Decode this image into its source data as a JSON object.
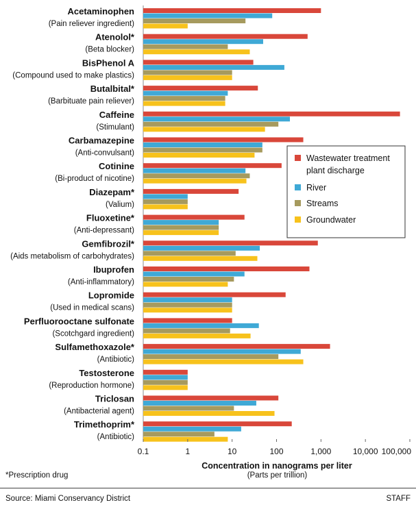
{
  "chart_data": {
    "type": "bar",
    "orientation": "horizontal",
    "xscale": "log",
    "xlim": [
      0.1,
      100000
    ],
    "xticks": [
      "0.1",
      "1",
      "10",
      "100",
      "1,000",
      "10,000",
      "100,000"
    ],
    "xlabel": "Concentration in nanograms per liter",
    "xlabel_sub": "(Parts per trillion)",
    "legend_position": "right-middle",
    "series": [
      {
        "name": "Wastewater treatment plant discharge",
        "color": "#d9473a"
      },
      {
        "name": "River",
        "color": "#3fa9d6"
      },
      {
        "name": "Streams",
        "color": "#a69a5e"
      },
      {
        "name": "Groundwater",
        "color": "#f7c21c"
      }
    ],
    "compounds": [
      {
        "name": "Acetaminophen",
        "desc": "(Pain reliever ingredient)",
        "values": [
          1000,
          80,
          20,
          1
        ]
      },
      {
        "name": "Atenolol*",
        "desc": "(Beta blocker)",
        "values": [
          500,
          50,
          8,
          25
        ]
      },
      {
        "name": "BisPhenol A",
        "desc": "(Compound used to make plastics)",
        "values": [
          30,
          150,
          10,
          10
        ]
      },
      {
        "name": "Butalbital*",
        "desc": "(Barbituate pain reliever)",
        "values": [
          38,
          8,
          7,
          7
        ]
      },
      {
        "name": "Caffeine",
        "desc": "(Stimulant)",
        "values": [
          60000,
          200,
          110,
          55
        ]
      },
      {
        "name": "Carbamazepine",
        "desc": "(Anti-convulsant)",
        "values": [
          400,
          48,
          48,
          32
        ]
      },
      {
        "name": "Cotinine",
        "desc": "(Bi-product of nicotine)",
        "values": [
          130,
          20,
          25,
          21
        ]
      },
      {
        "name": "Diazepam*",
        "desc": "(Valium)",
        "values": [
          14,
          1,
          1,
          1
        ]
      },
      {
        "name": "Fluoxetine*",
        "desc": "(Anti-depressant)",
        "values": [
          19,
          5,
          5,
          5
        ]
      },
      {
        "name": "Gemfibrozil*",
        "desc": "(Aids metabolism of carbohydrates)",
        "values": [
          850,
          42,
          12,
          37
        ]
      },
      {
        "name": "Ibuprofen",
        "desc": "(Anti-inflammatory)",
        "values": [
          550,
          19,
          11,
          8
        ]
      },
      {
        "name": "Lopromide",
        "desc": "(Used in medical scans)",
        "values": [
          160,
          10,
          10,
          10
        ]
      },
      {
        "name": "Perfluorooctane sulfonate",
        "desc": "(Scotchgard ingredient)",
        "values": [
          10,
          40,
          9,
          26
        ]
      },
      {
        "name": "Sulfamethoxazole*",
        "desc": "(Antibiotic)",
        "values": [
          1600,
          350,
          110,
          400
        ]
      },
      {
        "name": "Testosterone",
        "desc": "(Reproduction hormone)",
        "values": [
          1,
          1,
          1,
          1
        ]
      },
      {
        "name": "Triclosan",
        "desc": "(Antibacterial agent)",
        "values": [
          110,
          35,
          11,
          90
        ]
      },
      {
        "name": "Trimethoprim*",
        "desc": "(Antibiotic)",
        "values": [
          220,
          16,
          4,
          8
        ]
      }
    ]
  },
  "footnote": "*Prescription drug",
  "source": "Source: Miami Conservancy District",
  "credit": "STAFF"
}
